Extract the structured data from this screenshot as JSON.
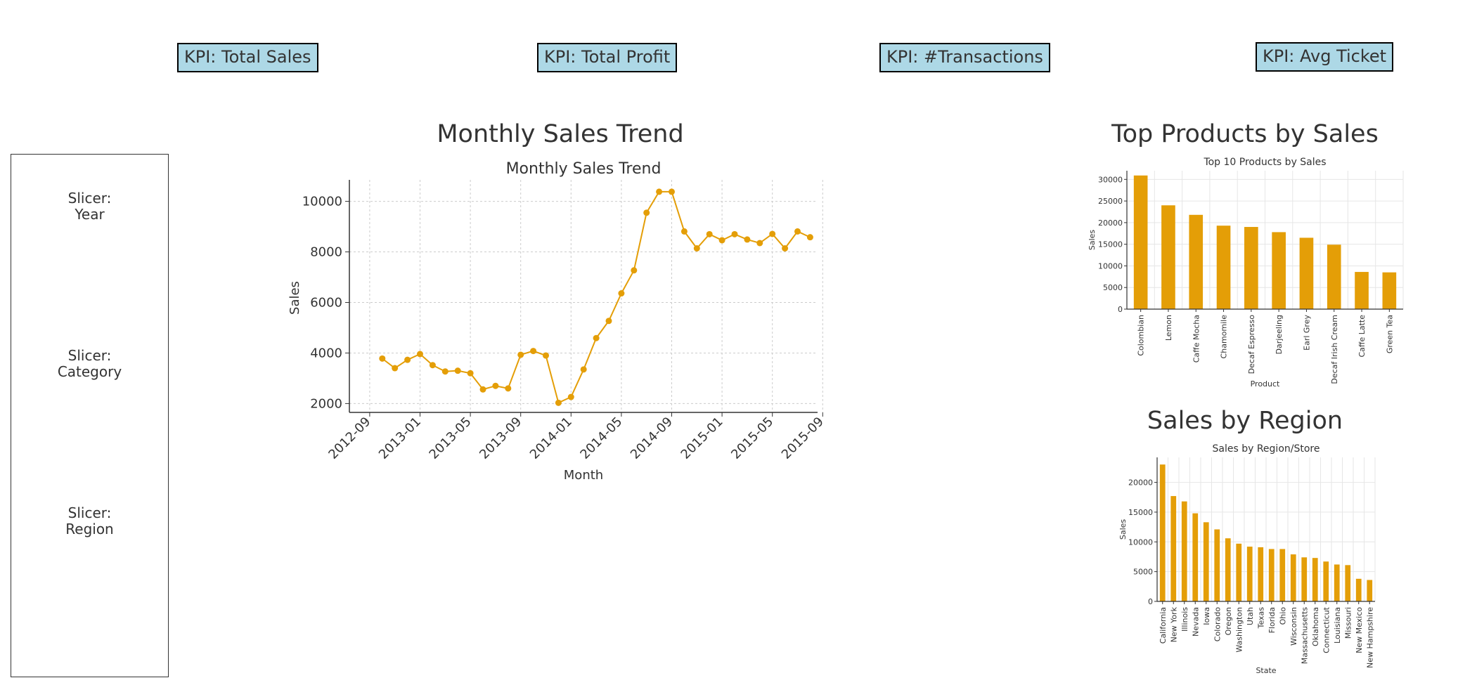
{
  "kpis": [
    {
      "label": "KPI: Total Sales"
    },
    {
      "label": "KPI: Total Profit"
    },
    {
      "label": "KPI: #Transactions"
    },
    {
      "label": "KPI: Avg Ticket"
    }
  ],
  "slicers": [
    {
      "line1": "Slicer:",
      "line2": "Year"
    },
    {
      "line1": "Slicer:",
      "line2": "Category"
    },
    {
      "line1": "Slicer:",
      "line2": "Region"
    }
  ],
  "sections": {
    "trend": "Monthly Sales Trend",
    "products": "Top Products by Sales",
    "region": "Sales by Region"
  },
  "colors": {
    "series": "#e49e07",
    "kpi_fill": "#add8e6",
    "grid": "#cccccc"
  },
  "chart_data": [
    {
      "type": "line",
      "title": "Monthly Sales Trend",
      "xlabel": "Month",
      "ylabel": "Sales",
      "x_ticks": [
        "2012-09",
        "2013-01",
        "2013-05",
        "2013-09",
        "2014-01",
        "2014-05",
        "2014-09",
        "2015-01",
        "2015-05",
        "2015-09"
      ],
      "y_ticks": [
        2000,
        4000,
        6000,
        8000,
        10000
      ],
      "ylim": [
        1650,
        10850
      ],
      "grid": true,
      "x": [
        "2012-10",
        "2012-11",
        "2012-12",
        "2013-01",
        "2013-02",
        "2013-03",
        "2013-04",
        "2013-05",
        "2013-06",
        "2013-07",
        "2013-08",
        "2013-09",
        "2013-10",
        "2013-11",
        "2013-12",
        "2014-01",
        "2014-02",
        "2014-03",
        "2014-04",
        "2014-05",
        "2014-06",
        "2014-07",
        "2014-08",
        "2014-09",
        "2014-10",
        "2014-11",
        "2014-12",
        "2015-01",
        "2015-02",
        "2015-03",
        "2015-04",
        "2015-05",
        "2015-06",
        "2015-07",
        "2015-08"
      ],
      "values": [
        3780,
        3400,
        3730,
        3960,
        3520,
        3270,
        3300,
        3200,
        2560,
        2700,
        2600,
        3930,
        4080,
        3900,
        2030,
        2260,
        3350,
        4590,
        5270,
        6360,
        7270,
        9550,
        10380,
        10380,
        8810,
        8140,
        8700,
        8460,
        8700,
        8490,
        8350,
        8710,
        8140,
        8810,
        8580
      ]
    },
    {
      "type": "bar",
      "title": "Top 10 Products by Sales",
      "xlabel": "Product",
      "ylabel": "Sales",
      "y_ticks": [
        0,
        5000,
        10000,
        15000,
        20000,
        25000,
        30000
      ],
      "ylim": [
        0,
        32000
      ],
      "grid": true,
      "categories": [
        "Colombian",
        "Lemon",
        "Caffe Mocha",
        "Chamomile",
        "Decaf Espresso",
        "Darjeeling",
        "Earl Grey",
        "Decaf Irish Cream",
        "Caffe Latte",
        "Green Tea"
      ],
      "values": [
        30900,
        24000,
        21800,
        19300,
        19000,
        17800,
        16500,
        14900,
        8600,
        8500
      ]
    },
    {
      "type": "bar",
      "title": "Sales by Region/Store",
      "xlabel": "State",
      "ylabel": "Sales",
      "y_ticks": [
        0,
        5000,
        10000,
        15000,
        20000
      ],
      "ylim": [
        0,
        24200
      ],
      "grid": true,
      "categories": [
        "California",
        "New York",
        "Illinois",
        "Nevada",
        "Iowa",
        "Colorado",
        "Oregon",
        "Washington",
        "Utah",
        "Texas",
        "Florida",
        "Ohio",
        "Wisconsin",
        "Massachusetts",
        "Oklahoma",
        "Connecticut",
        "Louisiana",
        "Missouri",
        "New Mexico",
        "New Hampshire"
      ],
      "values": [
        23000,
        17700,
        16800,
        14800,
        13300,
        12100,
        10600,
        9700,
        9200,
        9100,
        8800,
        8800,
        7900,
        7400,
        7300,
        6700,
        6200,
        6100,
        3800,
        3600
      ]
    }
  ]
}
